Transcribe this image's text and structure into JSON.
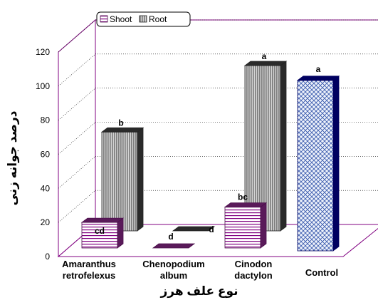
{
  "chart_data": {
    "type": "bar",
    "style": "3d-clustered",
    "categories": [
      [
        "Amaranthus",
        "retrofelexus"
      ],
      [
        "Chenopodium",
        "album"
      ],
      [
        "Cinodon",
        "dactylon"
      ],
      [
        "Control"
      ]
    ],
    "series": [
      {
        "name": "Shoot",
        "values": [
          15,
          0,
          24,
          null
        ],
        "labels": [
          "cd",
          "d",
          "bc",
          null
        ]
      },
      {
        "name": "Root",
        "values": [
          58,
          0,
          97,
          null
        ],
        "labels": [
          "b",
          "d",
          "a",
          null
        ]
      },
      {
        "name": "",
        "values": [
          null,
          null,
          null,
          100
        ],
        "labels": [
          null,
          null,
          null,
          "a"
        ]
      }
    ],
    "ylabel": "درصد جوانه زنی",
    "xlabel": "نوع علف هرز",
    "ylim": [
      0,
      120
    ],
    "yticks": [
      0,
      20,
      40,
      60,
      80,
      100,
      120
    ],
    "grid": true,
    "legend_position": "top-left",
    "colors": {
      "shoot_fill": "#ffffff",
      "shoot_stripe": "#800080",
      "shoot_edge": "#4b0f4b",
      "root_fill": "#c0c0c0",
      "root_stripe": "#444444",
      "root_edge": "#222222",
      "control_fill": "#e8eefa",
      "control_pattern": "#3355aa",
      "control_edge": "#000060",
      "frame": "#800080"
    }
  }
}
